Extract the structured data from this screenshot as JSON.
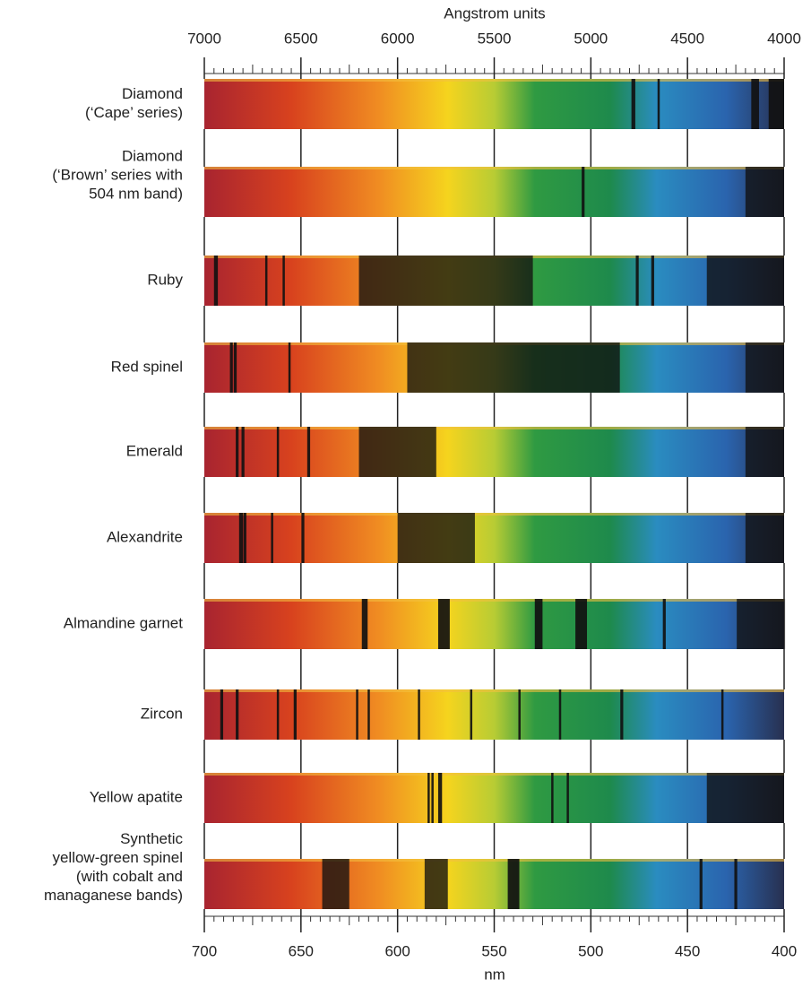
{
  "header": {
    "top_axis_label": "Angstrom units",
    "bottom_axis_label": "nm"
  },
  "top_axis": {
    "range": [
      7000,
      4000
    ],
    "ticks": [
      7000,
      6500,
      6000,
      5500,
      5000,
      4500,
      4000
    ]
  },
  "bottom_axis": {
    "range": [
      700,
      400
    ],
    "ticks": [
      700,
      650,
      600,
      550,
      500,
      450,
      400
    ]
  },
  "rows": [
    {
      "label": [
        "Diamond",
        "(‘Cape’ series)"
      ],
      "bands": [
        [
          478,
          2
        ],
        [
          465,
          1
        ],
        [
          415,
          4
        ],
        [
          404,
          8
        ]
      ]
    },
    {
      "label": [
        "Diamond",
        "(‘Brown’ series with",
        "504 nm band)"
      ],
      "bands": [
        [
          504,
          1.5
        ],
        [
          410,
          20
        ]
      ]
    },
    {
      "label": [
        "Ruby"
      ],
      "bands": [
        [
          694,
          2
        ],
        [
          668,
          1
        ],
        [
          659,
          1
        ],
        [
          575,
          90
        ],
        [
          476,
          1.5
        ],
        [
          468,
          1.5
        ],
        [
          420,
          40
        ]
      ]
    },
    {
      "label": [
        "Red spinel"
      ],
      "bands": [
        [
          686,
          1.5
        ],
        [
          684,
          1.5
        ],
        [
          656,
          1
        ],
        [
          540,
          110
        ],
        [
          410,
          20
        ]
      ]
    },
    {
      "label": [
        "Emerald"
      ],
      "bands": [
        [
          683,
          1.5
        ],
        [
          680,
          1.5
        ],
        [
          662,
          1
        ],
        [
          646,
          1.5
        ],
        [
          600,
          40
        ],
        [
          410,
          20
        ]
      ]
    },
    {
      "label": [
        "Alexandrite"
      ],
      "bands": [
        [
          681,
          2
        ],
        [
          679,
          1.5
        ],
        [
          665,
          1
        ],
        [
          649,
          1.5
        ],
        [
          580,
          40
        ],
        [
          410,
          20
        ]
      ]
    },
    {
      "label": [
        "Almandine garnet"
      ],
      "bands": [
        [
          617,
          3
        ],
        [
          576,
          6
        ],
        [
          527,
          4
        ],
        [
          505,
          6
        ],
        [
          462,
          1.5
        ],
        [
          412,
          25
        ]
      ]
    },
    {
      "label": [
        "Zircon"
      ],
      "bands": [
        [
          691,
          1.5
        ],
        [
          683,
          1.5
        ],
        [
          662,
          1
        ],
        [
          653,
          1.5
        ],
        [
          621,
          1
        ],
        [
          615,
          1
        ],
        [
          589,
          1
        ],
        [
          562,
          1
        ],
        [
          537,
          1
        ],
        [
          516,
          1
        ],
        [
          484,
          1.5
        ],
        [
          432,
          1
        ]
      ]
    },
    {
      "label": [
        "Yellow apatite"
      ],
      "bands": [
        [
          584,
          1
        ],
        [
          582,
          1
        ],
        [
          578,
          2
        ],
        [
          520,
          1
        ],
        [
          512,
          1
        ],
        [
          420,
          40
        ]
      ]
    },
    {
      "label": [
        "Synthetic",
        "yellow-green spinel",
        "(with cobalt and",
        "managanese bands)"
      ],
      "bands": [
        [
          632,
          14
        ],
        [
          580,
          12
        ],
        [
          540,
          6
        ],
        [
          443,
          1.5
        ],
        [
          425,
          1.5
        ]
      ]
    }
  ]
}
